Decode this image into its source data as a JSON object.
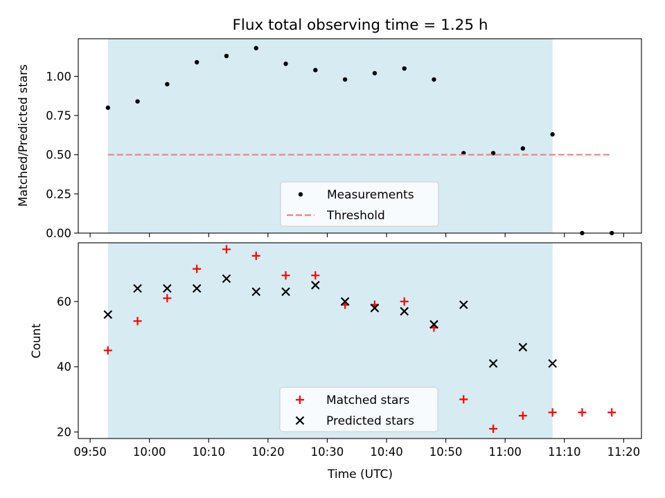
{
  "chart_data": [
    {
      "type": "scatter",
      "title": "Flux total observing time = 1.25 h",
      "xlabel": "",
      "ylabel": "Matched/Predicted stars",
      "xlim": [
        "09:48",
        "11:23"
      ],
      "ylim": [
        0,
        1.24
      ],
      "yticks": [
        "0.00",
        "0.25",
        "0.50",
        "0.75",
        "1.00"
      ],
      "xticks": [
        "09:50",
        "10:00",
        "10:10",
        "10:20",
        "10:30",
        "10:40",
        "10:50",
        "11:00",
        "11:10",
        "11:20"
      ],
      "shaded_span": [
        "09:53",
        "11:08"
      ],
      "legend": {
        "placement": "lower-center",
        "entries": [
          "Measurements",
          "Threshold"
        ]
      },
      "series": [
        {
          "name": "Measurements",
          "marker": "dot",
          "color": "#000000",
          "x": [
            "09:53",
            "09:58",
            "10:03",
            "10:08",
            "10:13",
            "10:18",
            "10:23",
            "10:28",
            "10:33",
            "10:38",
            "10:43",
            "10:48",
            "10:53",
            "10:58",
            "11:03",
            "11:08",
            "11:13",
            "11:18"
          ],
          "y": [
            0.8,
            0.84,
            0.95,
            1.09,
            1.13,
            1.18,
            1.08,
            1.04,
            0.98,
            1.02,
            1.05,
            0.98,
            0.51,
            0.51,
            0.54,
            0.63,
            0.0,
            0.0
          ]
        },
        {
          "name": "Threshold",
          "marker": "dashed-line",
          "color": "#f08080",
          "x": [
            "09:53",
            "11:18"
          ],
          "y": [
            0.5,
            0.5
          ]
        }
      ]
    },
    {
      "type": "scatter",
      "title": "",
      "xlabel": "Time (UTC)",
      "ylabel": "Count",
      "xlim": [
        "09:48",
        "11:23"
      ],
      "ylim": [
        18,
        78
      ],
      "yticks": [
        "20",
        "40",
        "60"
      ],
      "xticks": [
        "09:50",
        "10:00",
        "10:10",
        "10:20",
        "10:30",
        "10:40",
        "10:50",
        "11:00",
        "11:10",
        "11:20"
      ],
      "shaded_span": [
        "09:53",
        "11:08"
      ],
      "legend": {
        "placement": "lower-center",
        "entries": [
          "Matched stars",
          "Predicted stars"
        ]
      },
      "series": [
        {
          "name": "Matched stars",
          "marker": "plus",
          "color": "#ff0000",
          "x": [
            "09:53",
            "09:58",
            "10:03",
            "10:08",
            "10:13",
            "10:18",
            "10:23",
            "10:28",
            "10:33",
            "10:38",
            "10:43",
            "10:48",
            "10:53",
            "10:58",
            "11:03",
            "11:08",
            "11:13",
            "11:18"
          ],
          "y": [
            45,
            54,
            61,
            70,
            76,
            74,
            68,
            68,
            59,
            59,
            60,
            52,
            30,
            21,
            25,
            26,
            26,
            26
          ]
        },
        {
          "name": "Predicted stars",
          "marker": "x",
          "color": "#000000",
          "x": [
            "09:53",
            "09:58",
            "10:03",
            "10:08",
            "10:13",
            "10:18",
            "10:23",
            "10:28",
            "10:33",
            "10:38",
            "10:43",
            "10:48",
            "10:53",
            "10:58",
            "11:03",
            "11:08"
          ],
          "y": [
            56,
            64,
            64,
            64,
            67,
            63,
            63,
            65,
            60,
            58,
            57,
            53,
            59,
            41,
            46,
            41
          ]
        }
      ]
    }
  ],
  "colors": {
    "span": "#add8e6",
    "threshold": "#f08080",
    "matched": "#ff0000",
    "predicted": "#000000"
  }
}
